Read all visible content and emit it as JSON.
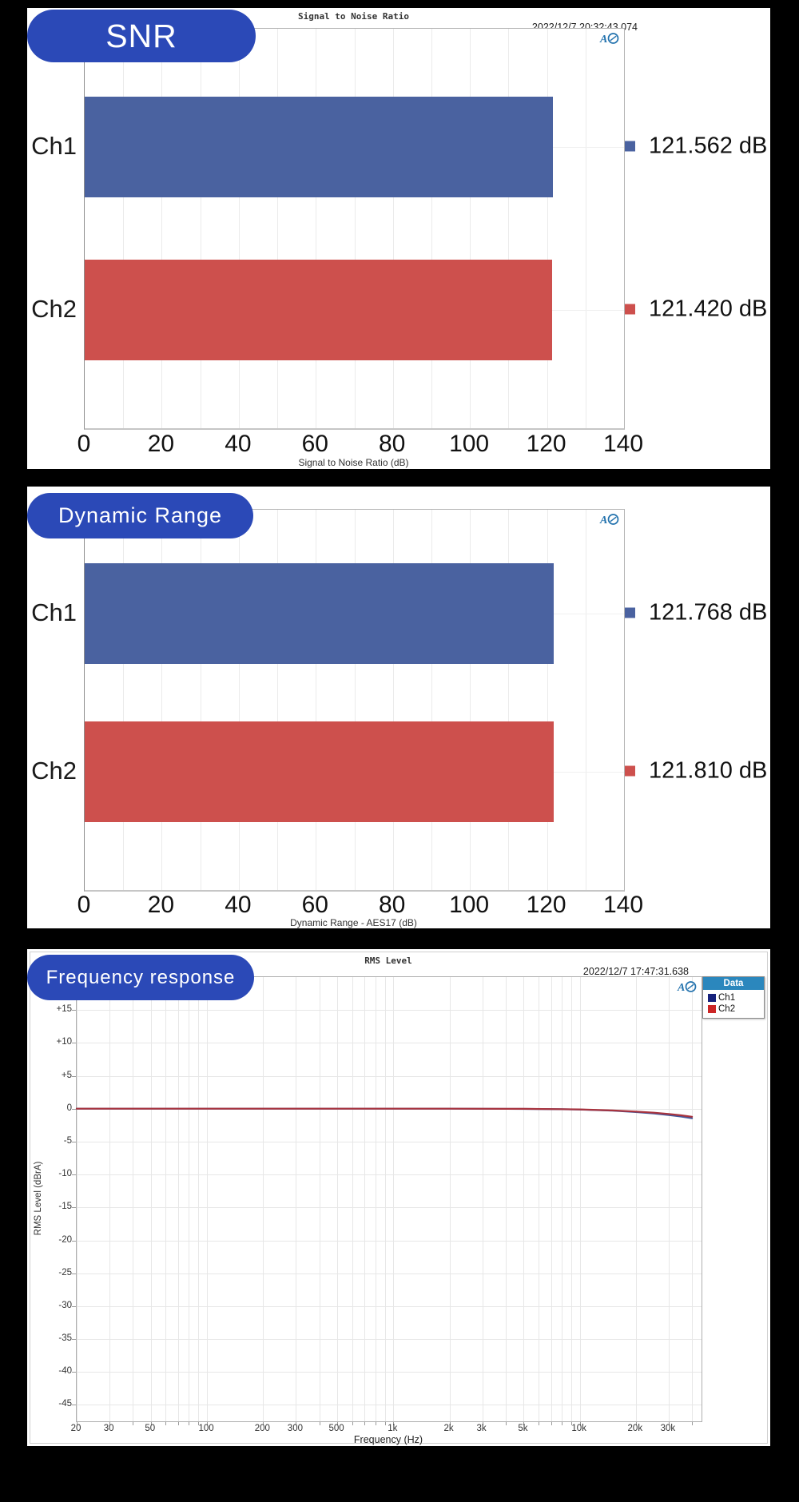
{
  "page": {
    "background": "#000000"
  },
  "icons": {
    "ap_logo": "audio-precision-ap-logo"
  },
  "colors": {
    "pill_blue": "#2b49b7",
    "bar_blue": "#4a62a0",
    "bar_red": "#cd504d",
    "line_blue": "#44589b",
    "line_red": "#a8333e",
    "legend_header_bg": "#2b87bd"
  },
  "charts": [
    {
      "pill_label": "SNR",
      "title": "Signal to Noise Ratio",
      "timestamp": "2022/12/7 20:32:43.074",
      "axis_caption": "Signal to Noise Ratio (dB)",
      "chart_data": {
        "type": "bar",
        "orientation": "horizontal",
        "categories": [
          "Ch1",
          "Ch2"
        ],
        "values": [
          121.562,
          121.42
        ],
        "value_labels": [
          "121.562 dB",
          "121.420 dB"
        ],
        "bar_colors": [
          "#4a62a0",
          "#cd504d"
        ],
        "xlim": [
          0,
          140
        ],
        "xticks": [
          0,
          20,
          40,
          60,
          80,
          100,
          120,
          140
        ],
        "grid_step": 10,
        "xlabel": "Signal to Noise Ratio (dB)",
        "grid": true
      }
    },
    {
      "pill_label": "Dynamic Range",
      "axis_caption": "Dynamic Range - AES17 (dB)",
      "chart_data": {
        "type": "bar",
        "orientation": "horizontal",
        "categories": [
          "Ch1",
          "Ch2"
        ],
        "values": [
          121.768,
          121.81
        ],
        "value_labels": [
          "121.768 dB",
          "121.810 dB"
        ],
        "bar_colors": [
          "#4a62a0",
          "#cd504d"
        ],
        "xlim": [
          0,
          140
        ],
        "xticks": [
          0,
          20,
          40,
          60,
          80,
          100,
          120,
          140
        ],
        "grid_step": 10,
        "xlabel": "Dynamic Range - AES17 (dB)",
        "grid": true
      }
    },
    {
      "pill_label": "Frequency response",
      "title": "RMS Level",
      "timestamp": "2022/12/7 17:47:31.638",
      "xlabel": "Frequency (Hz)",
      "ylabel": "RMS Level (dBrA)",
      "legend": {
        "header": "Data",
        "position": "top-right",
        "entries": [
          {
            "label": "Ch1",
            "color": "#16227c"
          },
          {
            "label": "Ch2",
            "color": "#cc2626"
          }
        ]
      },
      "chart_data": {
        "type": "line",
        "xscale": "log",
        "xlim": [
          20,
          45000
        ],
        "ylim": [
          -47.5,
          20
        ],
        "yticks": [
          15,
          10,
          5,
          0,
          -5,
          -10,
          -15,
          -20,
          -25,
          -30,
          -35,
          -40,
          -45
        ],
        "ytick_labels": [
          "+15",
          "+10",
          "+5",
          "0",
          "-5",
          "-10",
          "-15",
          "-20",
          "-25",
          "-30",
          "-35",
          "-40",
          "-45"
        ],
        "xticks": [
          20,
          30,
          50,
          100,
          200,
          300,
          500,
          1000,
          2000,
          3000,
          5000,
          10000,
          20000,
          30000
        ],
        "xtick_labels": [
          "20",
          "30",
          "50",
          "100",
          "200",
          "300",
          "500",
          "1k",
          "2k",
          "3k",
          "5k",
          "10k",
          "20k",
          "30k"
        ],
        "grid": true,
        "series": [
          {
            "name": "Ch1",
            "color": "#44589b",
            "points": [
              [
                20,
                0
              ],
              [
                50,
                0
              ],
              [
                100,
                0
              ],
              [
                500,
                0
              ],
              [
                1000,
                0
              ],
              [
                2000,
                0
              ],
              [
                5000,
                -0.03
              ],
              [
                8000,
                -0.08
              ],
              [
                10000,
                -0.13
              ],
              [
                15000,
                -0.3
              ],
              [
                20000,
                -0.5
              ],
              [
                25000,
                -0.72
              ],
              [
                30000,
                -0.95
              ],
              [
                35000,
                -1.18
              ],
              [
                40000,
                -1.45
              ]
            ]
          },
          {
            "name": "Ch2",
            "color": "#a8333e",
            "points": [
              [
                20,
                0
              ],
              [
                50,
                0
              ],
              [
                100,
                0
              ],
              [
                500,
                0
              ],
              [
                1000,
                0
              ],
              [
                2000,
                0
              ],
              [
                5000,
                -0.02
              ],
              [
                8000,
                -0.07
              ],
              [
                10000,
                -0.11
              ],
              [
                15000,
                -0.26
              ],
              [
                20000,
                -0.43
              ],
              [
                25000,
                -0.6
              ],
              [
                30000,
                -0.8
              ],
              [
                35000,
                -1.0
              ],
              [
                40000,
                -1.22
              ]
            ]
          }
        ]
      }
    }
  ]
}
